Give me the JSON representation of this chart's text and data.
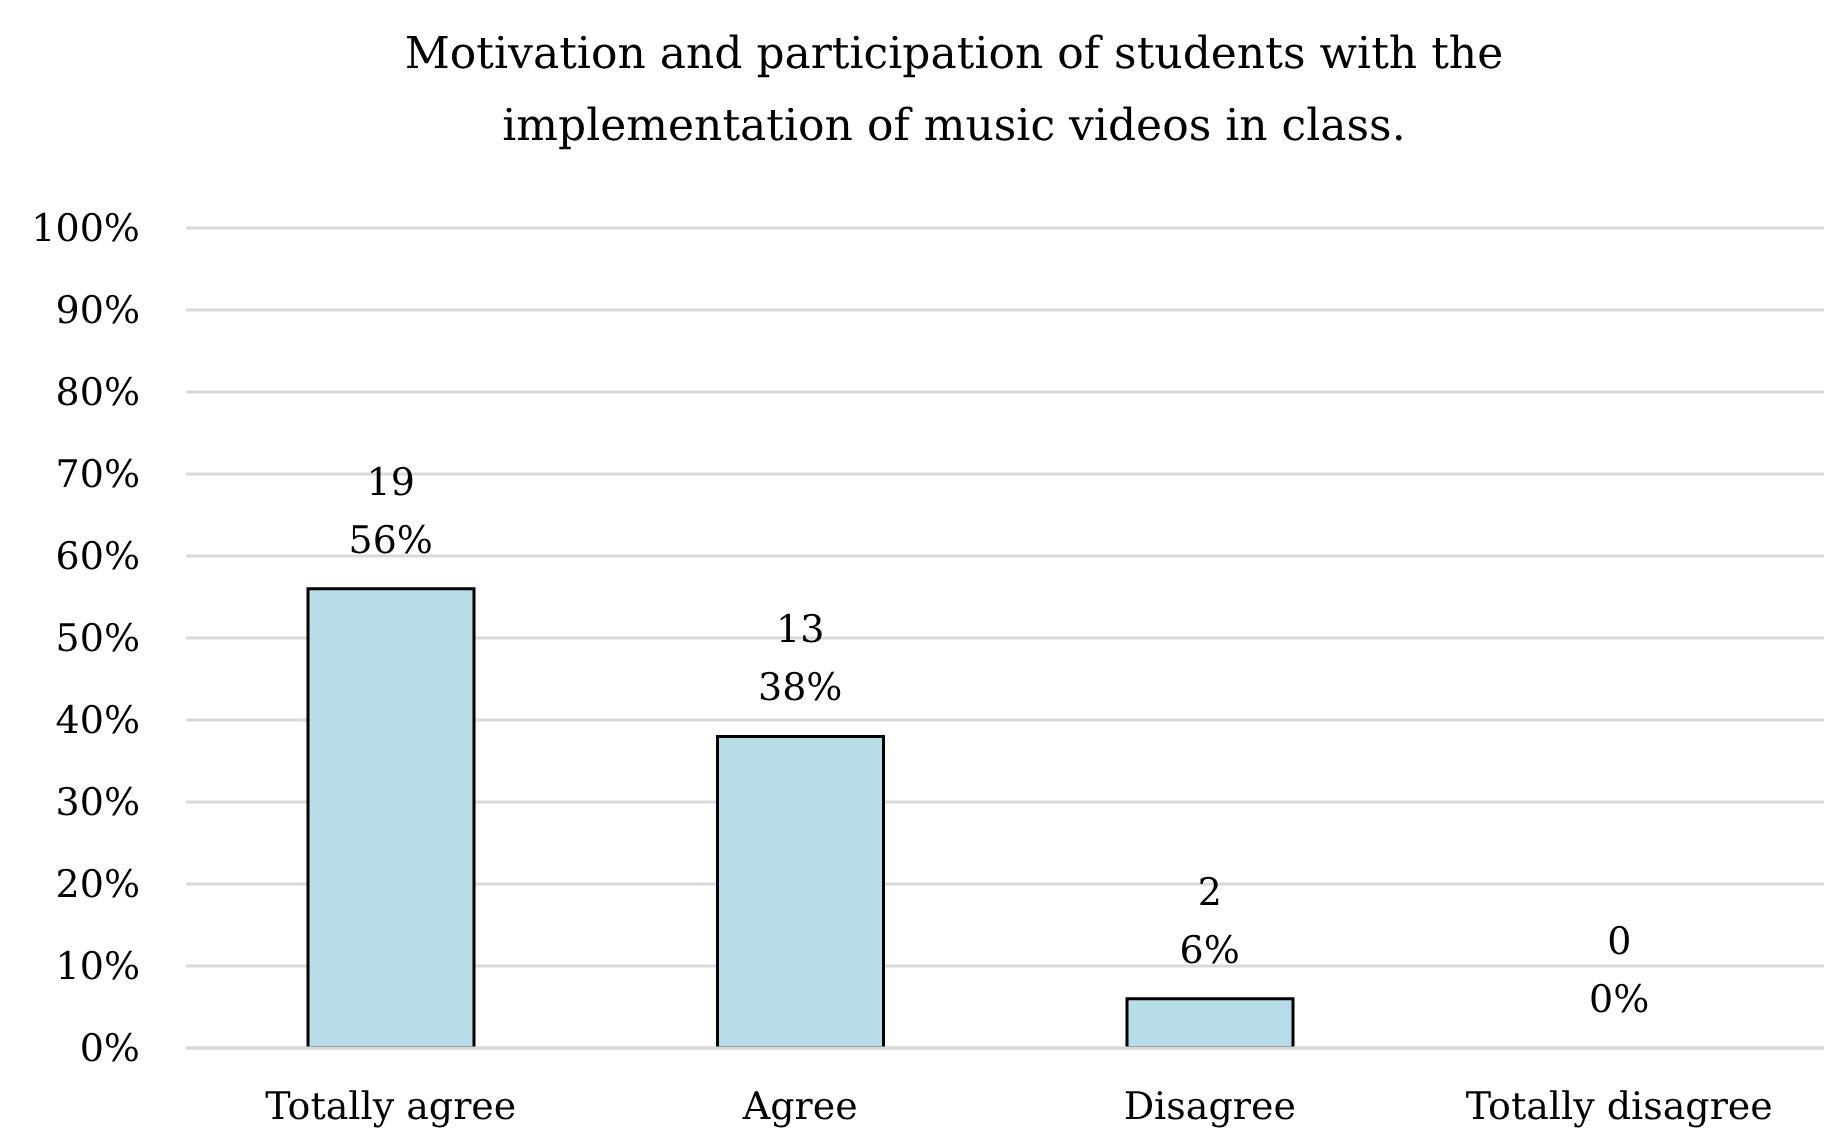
{
  "chart_data": {
    "type": "bar",
    "title": "Motivation and participation of students with the implementation of music videos in class.",
    "categories": [
      "Totally agree",
      "Agree",
      "Disagree",
      "Totally disagree"
    ],
    "values": [
      56,
      38,
      6,
      0
    ],
    "color": "#b7dee8",
    "value_labels": [
      "19\n56%",
      "13\n38%",
      "2\n6%",
      "0\n0%"
    ],
    "ylim": [
      0,
      100
    ],
    "yticks": [
      {
        "value": 0,
        "label": "0%"
      },
      {
        "value": 10,
        "label": "10%"
      },
      {
        "value": 20,
        "label": "20%"
      },
      {
        "value": 30,
        "label": "30%"
      },
      {
        "value": 40,
        "label": "40%"
      },
      {
        "value": 50,
        "label": "50%"
      },
      {
        "value": 60,
        "label": "60%"
      },
      {
        "value": 70,
        "label": "70%"
      },
      {
        "value": 80,
        "label": "80%"
      },
      {
        "value": 90,
        "label": "90%"
      },
      {
        "value": 100,
        "label": "100%"
      }
    ],
    "grid": "y"
  }
}
